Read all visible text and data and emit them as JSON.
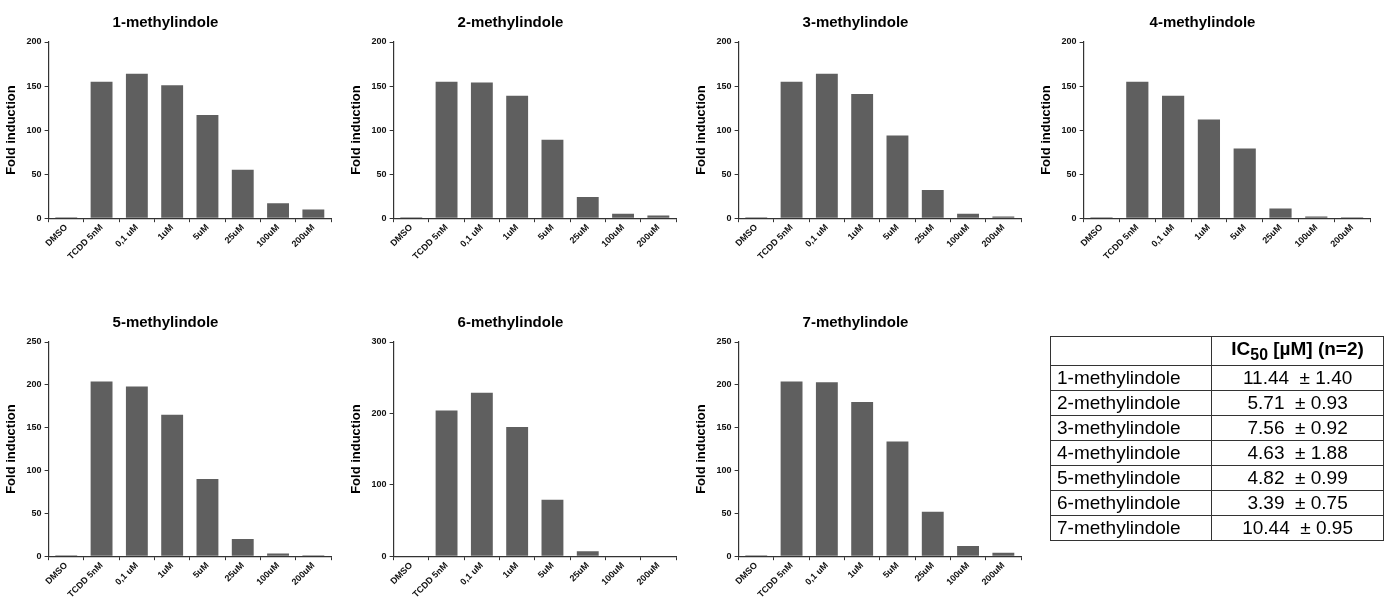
{
  "chart_data": [
    {
      "type": "bar",
      "title": "1-methylindole",
      "ylabel": "Fold induction",
      "categories": [
        "DMSO",
        "TCDD 5nM",
        "0,1 uM",
        "1uM",
        "5uM",
        "25uM",
        "100uM",
        "200uM"
      ],
      "values": [
        1,
        155,
        164,
        151,
        117,
        55,
        17,
        10
      ],
      "color": "#5f5f5f",
      "ylim": [
        0,
        200
      ],
      "yticks": [
        0,
        50,
        100,
        150,
        200
      ]
    },
    {
      "type": "bar",
      "title": "2-methylindole",
      "ylabel": "Fold induction",
      "categories": [
        "DMSO",
        "TCDD 5nM",
        "0,1 uM",
        "1uM",
        "5uM",
        "25uM",
        "100uM",
        "200uM"
      ],
      "values": [
        1,
        155,
        154,
        139,
        89,
        24,
        5,
        3
      ],
      "color": "#5f5f5f",
      "ylim": [
        0,
        200
      ],
      "yticks": [
        0,
        50,
        100,
        150,
        200
      ]
    },
    {
      "type": "bar",
      "title": "3-methylindole",
      "ylabel": "Fold induction",
      "categories": [
        "DMSO",
        "TCDD 5nM",
        "0,1 uM",
        "1uM",
        "5uM",
        "25uM",
        "100uM",
        "200uM"
      ],
      "values": [
        1,
        155,
        164,
        141,
        94,
        32,
        5,
        2
      ],
      "color": "#5f5f5f",
      "ylim": [
        0,
        200
      ],
      "yticks": [
        0,
        50,
        100,
        150,
        200
      ]
    },
    {
      "type": "bar",
      "title": "4-methylindole",
      "ylabel": "Fold induction",
      "categories": [
        "DMSO",
        "TCDD 5nM",
        "0,1 uM",
        "1uM",
        "5uM",
        "25uM",
        "100uM",
        "200uM"
      ],
      "values": [
        1,
        155,
        139,
        112,
        79,
        11,
        2,
        1
      ],
      "color": "#5f5f5f",
      "ylim": [
        0,
        200
      ],
      "yticks": [
        0,
        50,
        100,
        150,
        200
      ]
    },
    {
      "type": "bar",
      "title": "5-methylindole",
      "ylabel": "Fold induction",
      "categories": [
        "DMSO",
        "TCDD 5nM",
        "0,1 uM",
        "1uM",
        "5uM",
        "25uM",
        "100uM",
        "200uM"
      ],
      "values": [
        1,
        204,
        198,
        165,
        90,
        20,
        3,
        1
      ],
      "color": "#5f5f5f",
      "ylim": [
        0,
        250
      ],
      "yticks": [
        0,
        50,
        100,
        150,
        200,
        250
      ]
    },
    {
      "type": "bar",
      "title": "6-methylindole",
      "ylabel": "Fold induction",
      "categories": [
        "DMSO",
        "TCDD 5nM",
        "0,1 uM",
        "1uM",
        "5uM",
        "25uM",
        "100uM",
        "200uM"
      ],
      "values": [
        null,
        204,
        229,
        181,
        79,
        7,
        null,
        null
      ],
      "color": "#5f5f5f",
      "ylim": [
        0,
        300
      ],
      "yticks": [
        0,
        100,
        200,
        300
      ]
    },
    {
      "type": "bar",
      "title": "7-methylindole",
      "ylabel": "Fold induction",
      "categories": [
        "DMSO",
        "TCDD 5nM",
        "0,1 uM",
        "1uM",
        "5uM",
        "25uM",
        "100uM",
        "200uM"
      ],
      "values": [
        1,
        204,
        203,
        180,
        134,
        52,
        12,
        4
      ],
      "color": "#5f5f5f",
      "ylim": [
        0,
        250
      ],
      "yticks": [
        0,
        50,
        100,
        150,
        200,
        250
      ]
    },
    {
      "type": "other",
      "title": "IC$_{50}$ [µM] (n=2)",
      "annotations": [
        "1-methylindole",
        "11.44  ± 1.40",
        "2-methylindole",
        "5.71  ± 0.93",
        "3-methylindole",
        "7.56  ± 0.92",
        "4-methylindole",
        "4.63  ± 1.88",
        "5-methylindole",
        "4.82  ± 0.99",
        "6-methylindole",
        "3.39  ± 0.75",
        "7-methylindole",
        "10.44  ± 0.95"
      ]
    }
  ]
}
